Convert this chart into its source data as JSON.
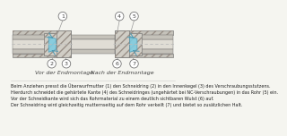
{
  "background_color": "#f5f5f0",
  "label_vor": "Vor der Endmontage",
  "label_nach": "Nach der Endmontage",
  "description_lines": [
    "Beim Anziehen presst die Überwurfmutter (1) den Schneidring (2) in den Innenkegel (3) des Verschraubungsstutzens.",
    "Hierdurch schneidet die gehärtete Kante (4) des Schneidringes (ungehärtet bei NC-Verschraubungen) in das Rohr (5) ein.",
    "Vor der Schneidkante wird sich das Rohrmaterial zu einem deutlich sichtbaren Wulst (6) auf.",
    "Der Schneidring wird gleichzeitig mutternseitig auf dem Rohr verkeilt (7) und bietet so zusätzlichen Halt."
  ],
  "body_color": "#d0cdc5",
  "hatch_color": "#999088",
  "pipe_inner_color": "#e0ddd5",
  "pipe_wall_color": "#c5c2ba",
  "blue_color": "#80cce0",
  "blue_dark": "#4a9ab5",
  "centerline_color": "#bbbbbb",
  "label_color": "#444444",
  "text_color": "#222222",
  "circle_edge_color": "#777777",
  "line_color": "#666666",
  "diagram_ymid": 0.72,
  "diagram_scale": 1.0
}
